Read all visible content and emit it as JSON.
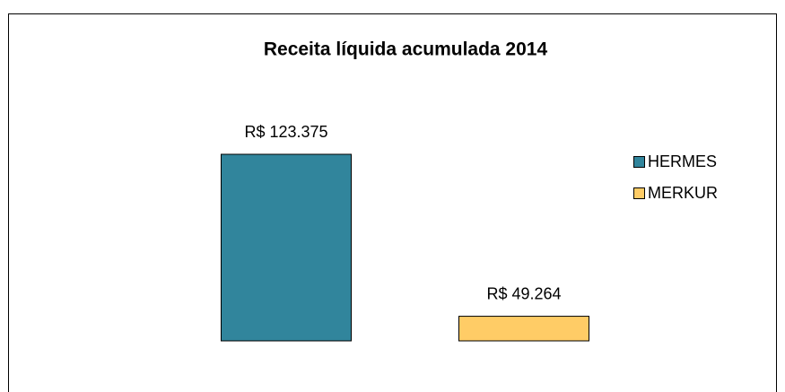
{
  "chart_data": {
    "type": "bar",
    "title": "Receita líquida acumulada 2014",
    "categories": [
      null
    ],
    "series": [
      {
        "name": "HERMES",
        "color": "#31859c",
        "values": [
          123375
        ],
        "value_labels": [
          "R$ 123.375"
        ]
      },
      {
        "name": "MERKUR",
        "color": "#ffcc66",
        "values": [
          49264
        ],
        "value_labels": [
          "R$ 49.264"
        ]
      }
    ],
    "ylim": [
      38000,
      140000
    ],
    "legend": "right"
  }
}
